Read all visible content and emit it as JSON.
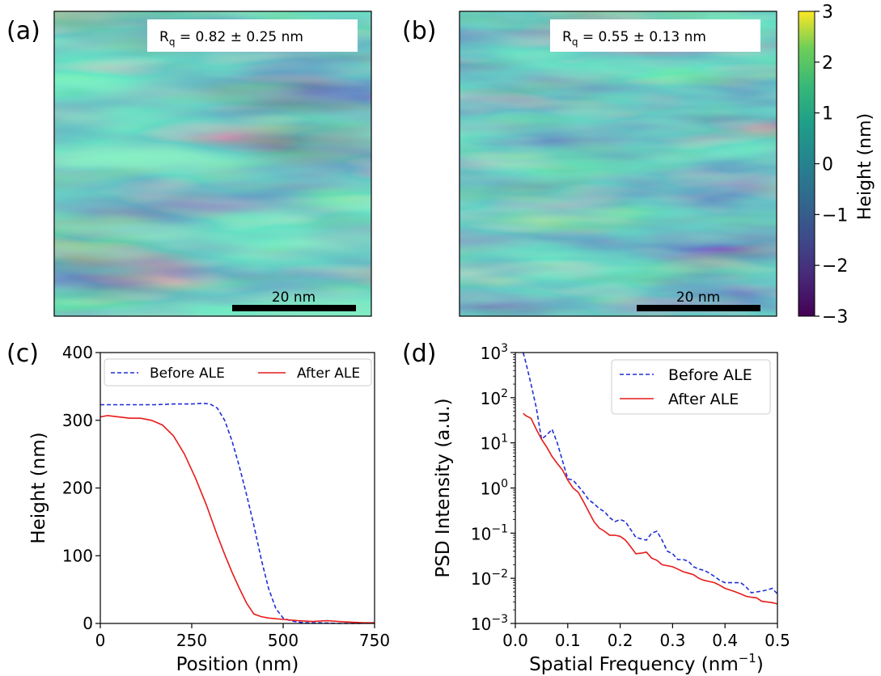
{
  "colors": {
    "before": "#1f2fd6",
    "after": "#e81a1a",
    "viridis": [
      "#440154",
      "#3b528b",
      "#21918c",
      "#5ec962",
      "#fde725"
    ]
  },
  "panels": {
    "a": {
      "label": "(a)",
      "roughness_main": "R",
      "roughness_sub": "q",
      "roughness_value": " = 0.82 ± 0.25 nm",
      "scalebar_label": "20 nm"
    },
    "b": {
      "label": "(b)",
      "roughness_main": "R",
      "roughness_sub": "q",
      "roughness_value": " = 0.55 ± 0.13 nm",
      "scalebar_label": "20 nm"
    },
    "c": {
      "label": "(c)"
    },
    "d": {
      "label": "(d)"
    }
  },
  "colorbar": {
    "label": "Height (nm)",
    "ticks": [
      "3",
      "2",
      "1",
      "0",
      "−1",
      "−2",
      "−3"
    ],
    "range": [
      -3,
      3
    ]
  },
  "chart_data": [
    {
      "type": "line",
      "panel": "c",
      "xlabel": "Position (nm)",
      "ylabel": "Height (nm)",
      "xlim": [
        0,
        750
      ],
      "ylim": [
        0,
        400
      ],
      "xticks": [
        "0",
        "250",
        "500",
        "750"
      ],
      "yticks": [
        "0",
        "100",
        "200",
        "300",
        "400"
      ],
      "legend": "top",
      "series": [
        {
          "name": "Before ALE",
          "style": "dashed",
          "x": [
            0,
            50,
            100,
            150,
            200,
            250,
            280,
            300,
            320,
            340,
            360,
            380,
            400,
            420,
            440,
            460,
            480,
            500,
            520,
            540,
            560,
            600,
            650,
            700,
            750
          ],
          "y": [
            323,
            323,
            323,
            323,
            324,
            324,
            325,
            324,
            318,
            300,
            270,
            232,
            190,
            145,
            95,
            52,
            22,
            8,
            4,
            2,
            1,
            1,
            0,
            0,
            1
          ]
        },
        {
          "name": "After ALE",
          "style": "solid",
          "x": [
            0,
            20,
            50,
            80,
            110,
            140,
            170,
            200,
            230,
            260,
            290,
            320,
            340,
            360,
            380,
            400,
            420,
            440,
            460,
            500,
            540,
            580,
            620,
            650,
            680,
            720,
            750
          ],
          "y": [
            305,
            307,
            305,
            303,
            303,
            300,
            293,
            277,
            250,
            215,
            175,
            130,
            102,
            76,
            52,
            30,
            14,
            10,
            8,
            6,
            4,
            3,
            4,
            3,
            2,
            1,
            1
          ]
        }
      ]
    },
    {
      "type": "line",
      "panel": "d",
      "xlabel": "Spatial Frequency (nm",
      "xlabel_sup": "−1",
      "xlabel_end": ")",
      "ylabel": "PSD Intensity (a.u.)",
      "xlim": [
        0.0,
        0.5
      ],
      "ylim_log10": [
        -3,
        3
      ],
      "yscale": "log",
      "xticks": [
        "0.0",
        "0.1",
        "0.2",
        "0.3",
        "0.4",
        "0.5"
      ],
      "yticks_exp": [
        "3",
        "2",
        "1",
        "0",
        "−1",
        "−2",
        "−3"
      ],
      "ytick_base": "10",
      "legend": "top-right",
      "series": [
        {
          "name": "Before ALE",
          "style": "dashed",
          "x": [
            0.015,
            0.02,
            0.03,
            0.04,
            0.05,
            0.06,
            0.07,
            0.08,
            0.09,
            0.1,
            0.11,
            0.12,
            0.13,
            0.14,
            0.15,
            0.16,
            0.17,
            0.18,
            0.19,
            0.2,
            0.21,
            0.22,
            0.23,
            0.24,
            0.25,
            0.26,
            0.27,
            0.28,
            0.29,
            0.3,
            0.31,
            0.32,
            0.33,
            0.34,
            0.35,
            0.36,
            0.37,
            0.38,
            0.39,
            0.4,
            0.41,
            0.42,
            0.43,
            0.44,
            0.45,
            0.46,
            0.47,
            0.48,
            0.49,
            0.5
          ],
          "y": [
            1000,
            600,
            200,
            60,
            12,
            15,
            20,
            10,
            4,
            1.6,
            1.5,
            1.1,
            0.8,
            0.55,
            0.45,
            0.35,
            0.3,
            0.22,
            0.18,
            0.2,
            0.18,
            0.12,
            0.08,
            0.075,
            0.07,
            0.1,
            0.11,
            0.07,
            0.04,
            0.035,
            0.026,
            0.026,
            0.024,
            0.018,
            0.016,
            0.015,
            0.013,
            0.011,
            0.009,
            0.008,
            0.008,
            0.008,
            0.008,
            0.0065,
            0.0048,
            0.005,
            0.0052,
            0.0055,
            0.006,
            0.0045
          ]
        },
        {
          "name": "After ALE",
          "style": "solid",
          "x": [
            0.015,
            0.02,
            0.03,
            0.04,
            0.05,
            0.06,
            0.07,
            0.08,
            0.09,
            0.1,
            0.11,
            0.12,
            0.13,
            0.14,
            0.15,
            0.16,
            0.17,
            0.18,
            0.19,
            0.2,
            0.21,
            0.22,
            0.23,
            0.24,
            0.25,
            0.26,
            0.27,
            0.28,
            0.29,
            0.3,
            0.31,
            0.32,
            0.33,
            0.34,
            0.35,
            0.36,
            0.37,
            0.38,
            0.39,
            0.4,
            0.41,
            0.42,
            0.43,
            0.44,
            0.45,
            0.46,
            0.47,
            0.48,
            0.49,
            0.5
          ],
          "y": [
            45,
            40,
            35,
            20,
            12,
            8,
            5,
            3.5,
            2.5,
            1.5,
            1.0,
            0.8,
            0.5,
            0.3,
            0.18,
            0.13,
            0.11,
            0.09,
            0.09,
            0.085,
            0.07,
            0.05,
            0.035,
            0.036,
            0.038,
            0.028,
            0.025,
            0.02,
            0.019,
            0.018,
            0.016,
            0.014,
            0.013,
            0.012,
            0.01,
            0.009,
            0.0085,
            0.008,
            0.007,
            0.006,
            0.0055,
            0.005,
            0.0045,
            0.004,
            0.0038,
            0.0037,
            0.0031,
            0.003,
            0.0029,
            0.0027
          ]
        }
      ]
    }
  ]
}
